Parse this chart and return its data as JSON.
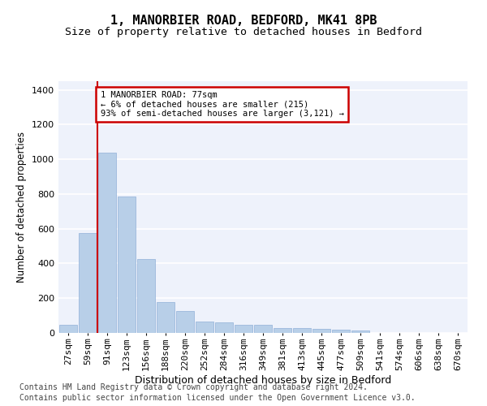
{
  "title_line1": "1, MANORBIER ROAD, BEDFORD, MK41 8PB",
  "title_line2": "Size of property relative to detached houses in Bedford",
  "xlabel": "Distribution of detached houses by size in Bedford",
  "ylabel": "Number of detached properties",
  "categories": [
    "27sqm",
    "59sqm",
    "91sqm",
    "123sqm",
    "156sqm",
    "188sqm",
    "220sqm",
    "252sqm",
    "284sqm",
    "316sqm",
    "349sqm",
    "381sqm",
    "413sqm",
    "445sqm",
    "477sqm",
    "509sqm",
    "541sqm",
    "574sqm",
    "606sqm",
    "638sqm",
    "670sqm"
  ],
  "values": [
    45,
    575,
    1040,
    785,
    425,
    180,
    128,
    65,
    60,
    45,
    45,
    28,
    28,
    22,
    18,
    12,
    0,
    0,
    0,
    0,
    0
  ],
  "bar_color": "#b8cfe8",
  "bar_edge_color": "#90b0d8",
  "vline_x_index": 1.5,
  "vline_color": "#cc0000",
  "annotation_line1": "1 MANORBIER ROAD: 77sqm",
  "annotation_line2": "← 6% of detached houses are smaller (215)",
  "annotation_line3": "93% of semi-detached houses are larger (3,121) →",
  "annotation_box_color": "#cc0000",
  "ylim": [
    0,
    1450
  ],
  "yticks": [
    0,
    200,
    400,
    600,
    800,
    1000,
    1200,
    1400
  ],
  "footer_line1": "Contains HM Land Registry data © Crown copyright and database right 2024.",
  "footer_line2": "Contains public sector information licensed under the Open Government Licence v3.0.",
  "bg_color": "#eef2fb",
  "grid_color": "#ffffff",
  "title1_fontsize": 11,
  "title2_fontsize": 9.5,
  "xlabel_fontsize": 9,
  "ylabel_fontsize": 8.5,
  "tick_fontsize": 8,
  "footer_fontsize": 7
}
